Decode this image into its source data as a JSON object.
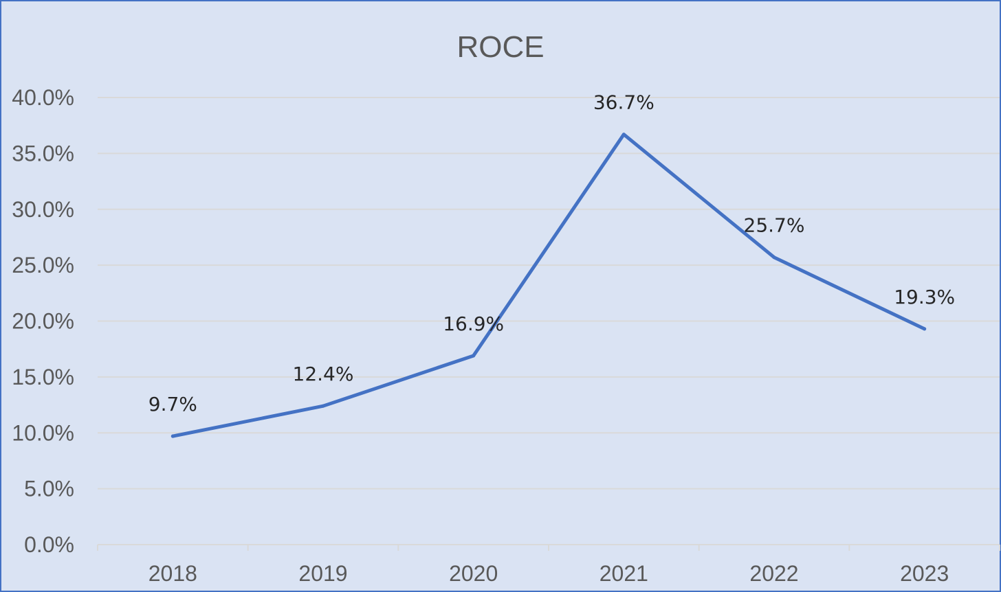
{
  "chart_data": {
    "type": "line",
    "title": "ROCE",
    "categories": [
      "2018",
      "2019",
      "2020",
      "2021",
      "2022",
      "2023"
    ],
    "series": [
      {
        "values": [
          9.7,
          12.4,
          16.9,
          36.7,
          25.7,
          19.3
        ],
        "labels": [
          "9.7%",
          "12.4%",
          "16.9%",
          "36.7%",
          "25.7%",
          "19.3%"
        ],
        "color": "#4472c4"
      }
    ],
    "ylim": [
      0,
      40
    ],
    "yticks": [
      "0.0%",
      "5.0%",
      "10.0%",
      "15.0%",
      "20.0%",
      "25.0%",
      "30.0%",
      "35.0%",
      "40.0%"
    ],
    "grid": true,
    "legend": "none",
    "background": "#dae3f3",
    "border_color": "#4472c4"
  }
}
